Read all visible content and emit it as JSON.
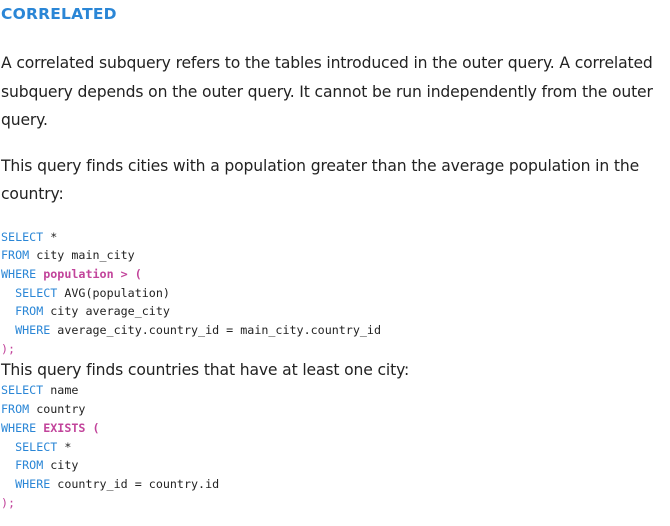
{
  "heading": "CORRELATED",
  "paragraph1": "A correlated subquery refers to the tables introduced in the outer query. A correlated subquery depends on the outer query. It cannot be run independently from the outer query.",
  "paragraph2": "This query finds cities with a population greater than the average population in the country:",
  "code1": {
    "l1_kw": "SELECT",
    "l1_rest": " *",
    "l2_kw": "FROM",
    "l2_rest": " city main_city",
    "l3_kw": "WHERE",
    "l3_hl": "population > (",
    "l4_kw": "SELECT",
    "l4_rest": " AVG(population)",
    "l5_kw": "FROM",
    "l5_rest": " city average_city",
    "l6_kw": "WHERE",
    "l6_rest": " average_city.country_id = main_city.country_id",
    "l7": ");"
  },
  "paragraph3": "This query finds countries that have at least one city:",
  "code2": {
    "l1_kw": "SELECT",
    "l1_rest": " name",
    "l2_kw": "FROM",
    "l2_rest": " country",
    "l3_kw": "WHERE",
    "l3_hl": "EXISTS (",
    "l4_kw": "SELECT",
    "l4_rest": " *",
    "l5_kw": "FROM",
    "l5_rest": " city",
    "l6_kw": "WHERE",
    "l6_rest": " country_id = country.id",
    "l7": ");"
  },
  "colors": {
    "heading": "#2a86d6",
    "keyword": "#2a86d6",
    "highlight": "#c2449b"
  }
}
